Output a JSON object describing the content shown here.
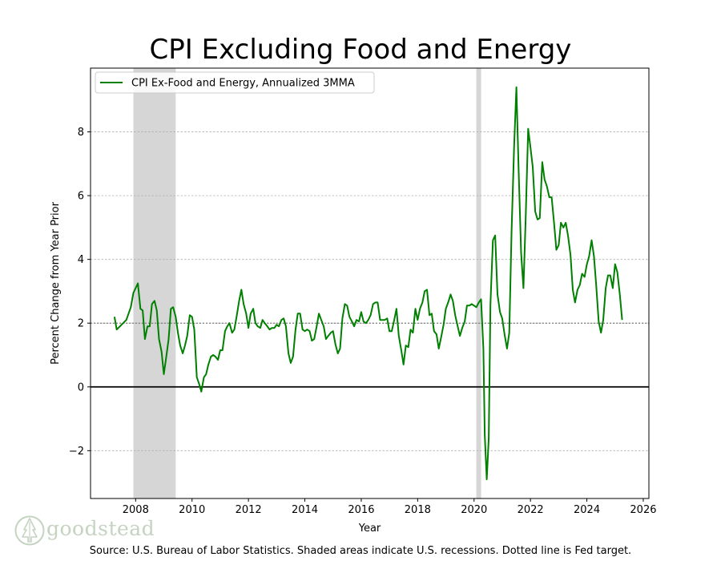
{
  "chart_data": {
    "type": "line",
    "title": "CPI Excluding Food and Energy",
    "xlabel": "Year",
    "ylabel": "Percent Change from Year Prior",
    "xlim": [
      2006.4,
      2026.2
    ],
    "ylim": [
      -3.5,
      10.0
    ],
    "x_ticks": [
      2008,
      2010,
      2012,
      2014,
      2016,
      2018,
      2020,
      2022,
      2024,
      2026
    ],
    "y_ticks": [
      -2,
      0,
      2,
      4,
      6,
      8
    ],
    "grid": "horizontal dashed",
    "legend_position": "top-left",
    "series": [
      {
        "name": "CPI Ex-Food and Energy, Annualized 3MMA",
        "color": "#008000",
        "points": [
          [
            2007.25,
            2.2
          ],
          [
            2007.33,
            1.8
          ],
          [
            2007.5,
            1.95
          ],
          [
            2007.67,
            2.1
          ],
          [
            2007.83,
            2.5
          ],
          [
            2007.92,
            2.95
          ],
          [
            2008.0,
            3.1
          ],
          [
            2008.08,
            3.25
          ],
          [
            2008.17,
            2.45
          ],
          [
            2008.25,
            2.4
          ],
          [
            2008.33,
            1.5
          ],
          [
            2008.42,
            1.9
          ],
          [
            2008.5,
            1.9
          ],
          [
            2008.58,
            2.6
          ],
          [
            2008.67,
            2.7
          ],
          [
            2008.75,
            2.4
          ],
          [
            2008.83,
            1.5
          ],
          [
            2008.92,
            1.1
          ],
          [
            2009.0,
            0.4
          ],
          [
            2009.08,
            0.9
          ],
          [
            2009.17,
            1.5
          ],
          [
            2009.25,
            2.45
          ],
          [
            2009.33,
            2.5
          ],
          [
            2009.42,
            2.2
          ],
          [
            2009.5,
            1.7
          ],
          [
            2009.58,
            1.3
          ],
          [
            2009.67,
            1.05
          ],
          [
            2009.75,
            1.3
          ],
          [
            2009.83,
            1.6
          ],
          [
            2009.92,
            2.25
          ],
          [
            2010.0,
            2.2
          ],
          [
            2010.08,
            1.8
          ],
          [
            2010.17,
            0.3
          ],
          [
            2010.25,
            0.1
          ],
          [
            2010.33,
            -0.15
          ],
          [
            2010.42,
            0.3
          ],
          [
            2010.5,
            0.4
          ],
          [
            2010.58,
            0.7
          ],
          [
            2010.67,
            0.95
          ],
          [
            2010.75,
            1.0
          ],
          [
            2010.83,
            0.95
          ],
          [
            2010.92,
            0.85
          ],
          [
            2011.0,
            1.15
          ],
          [
            2011.08,
            1.15
          ],
          [
            2011.17,
            1.75
          ],
          [
            2011.25,
            1.9
          ],
          [
            2011.33,
            2.0
          ],
          [
            2011.42,
            1.7
          ],
          [
            2011.5,
            1.8
          ],
          [
            2011.58,
            2.2
          ],
          [
            2011.67,
            2.7
          ],
          [
            2011.75,
            3.05
          ],
          [
            2011.83,
            2.6
          ],
          [
            2011.92,
            2.3
          ],
          [
            2012.0,
            1.85
          ],
          [
            2012.08,
            2.3
          ],
          [
            2012.17,
            2.45
          ],
          [
            2012.25,
            2.0
          ],
          [
            2012.33,
            1.9
          ],
          [
            2012.42,
            1.85
          ],
          [
            2012.5,
            2.1
          ],
          [
            2012.58,
            2.0
          ],
          [
            2012.67,
            1.9
          ],
          [
            2012.75,
            1.8
          ],
          [
            2012.83,
            1.85
          ],
          [
            2012.92,
            1.85
          ],
          [
            2013.0,
            1.95
          ],
          [
            2013.08,
            1.9
          ],
          [
            2013.17,
            2.1
          ],
          [
            2013.25,
            2.15
          ],
          [
            2013.33,
            1.9
          ],
          [
            2013.42,
            1.05
          ],
          [
            2013.5,
            0.75
          ],
          [
            2013.58,
            0.95
          ],
          [
            2013.67,
            1.8
          ],
          [
            2013.75,
            2.3
          ],
          [
            2013.83,
            2.3
          ],
          [
            2013.92,
            1.8
          ],
          [
            2014.0,
            1.75
          ],
          [
            2014.08,
            1.8
          ],
          [
            2014.17,
            1.75
          ],
          [
            2014.25,
            1.45
          ],
          [
            2014.33,
            1.5
          ],
          [
            2014.42,
            1.9
          ],
          [
            2014.5,
            2.3
          ],
          [
            2014.58,
            2.1
          ],
          [
            2014.67,
            1.9
          ],
          [
            2014.75,
            1.5
          ],
          [
            2014.83,
            1.6
          ],
          [
            2014.92,
            1.7
          ],
          [
            2015.0,
            1.75
          ],
          [
            2015.08,
            1.35
          ],
          [
            2015.17,
            1.05
          ],
          [
            2015.25,
            1.2
          ],
          [
            2015.33,
            2.15
          ],
          [
            2015.42,
            2.6
          ],
          [
            2015.5,
            2.55
          ],
          [
            2015.58,
            2.2
          ],
          [
            2015.67,
            2.05
          ],
          [
            2015.75,
            1.9
          ],
          [
            2015.83,
            2.1
          ],
          [
            2015.92,
            2.05
          ],
          [
            2016.0,
            2.35
          ],
          [
            2016.08,
            2.05
          ],
          [
            2016.17,
            2.0
          ],
          [
            2016.25,
            2.1
          ],
          [
            2016.33,
            2.25
          ],
          [
            2016.42,
            2.6
          ],
          [
            2016.5,
            2.65
          ],
          [
            2016.58,
            2.65
          ],
          [
            2016.67,
            2.1
          ],
          [
            2016.75,
            2.1
          ],
          [
            2016.83,
            2.1
          ],
          [
            2016.92,
            2.15
          ],
          [
            2017.0,
            1.75
          ],
          [
            2017.08,
            1.75
          ],
          [
            2017.17,
            2.1
          ],
          [
            2017.25,
            2.45
          ],
          [
            2017.33,
            1.6
          ],
          [
            2017.42,
            1.15
          ],
          [
            2017.5,
            0.7
          ],
          [
            2017.58,
            1.3
          ],
          [
            2017.67,
            1.25
          ],
          [
            2017.75,
            1.8
          ],
          [
            2017.83,
            1.7
          ],
          [
            2017.92,
            2.45
          ],
          [
            2018.0,
            2.1
          ],
          [
            2018.08,
            2.45
          ],
          [
            2018.17,
            2.65
          ],
          [
            2018.25,
            3.0
          ],
          [
            2018.33,
            3.05
          ],
          [
            2018.42,
            2.25
          ],
          [
            2018.5,
            2.3
          ],
          [
            2018.58,
            1.75
          ],
          [
            2018.67,
            1.65
          ],
          [
            2018.75,
            1.2
          ],
          [
            2018.83,
            1.55
          ],
          [
            2018.92,
            1.95
          ],
          [
            2019.0,
            2.45
          ],
          [
            2019.08,
            2.65
          ],
          [
            2019.17,
            2.9
          ],
          [
            2019.25,
            2.7
          ],
          [
            2019.33,
            2.25
          ],
          [
            2019.42,
            1.9
          ],
          [
            2019.5,
            1.6
          ],
          [
            2019.58,
            1.85
          ],
          [
            2019.67,
            2.05
          ],
          [
            2019.75,
            2.55
          ],
          [
            2019.83,
            2.55
          ],
          [
            2019.92,
            2.6
          ],
          [
            2020.0,
            2.55
          ],
          [
            2020.08,
            2.5
          ],
          [
            2020.17,
            2.65
          ],
          [
            2020.25,
            2.75
          ],
          [
            2020.33,
            1.2
          ],
          [
            2020.38,
            -1.5
          ],
          [
            2020.45,
            -2.9
          ],
          [
            2020.52,
            -1.6
          ],
          [
            2020.58,
            2.6
          ],
          [
            2020.67,
            4.6
          ],
          [
            2020.75,
            4.75
          ],
          [
            2020.83,
            2.9
          ],
          [
            2020.92,
            2.35
          ],
          [
            2021.0,
            2.15
          ],
          [
            2021.08,
            1.65
          ],
          [
            2021.17,
            1.2
          ],
          [
            2021.25,
            1.7
          ],
          [
            2021.33,
            4.9
          ],
          [
            2021.42,
            7.5
          ],
          [
            2021.5,
            9.4
          ],
          [
            2021.58,
            6.8
          ],
          [
            2021.67,
            4.2
          ],
          [
            2021.75,
            3.1
          ],
          [
            2021.83,
            5.3
          ],
          [
            2021.92,
            8.1
          ],
          [
            2022.0,
            7.5
          ],
          [
            2022.08,
            6.9
          ],
          [
            2022.17,
            5.5
          ],
          [
            2022.25,
            5.25
          ],
          [
            2022.33,
            5.3
          ],
          [
            2022.42,
            7.05
          ],
          [
            2022.5,
            6.5
          ],
          [
            2022.58,
            6.3
          ],
          [
            2022.67,
            5.95
          ],
          [
            2022.75,
            5.95
          ],
          [
            2022.83,
            5.2
          ],
          [
            2022.92,
            4.3
          ],
          [
            2023.0,
            4.45
          ],
          [
            2023.08,
            5.15
          ],
          [
            2023.17,
            5.0
          ],
          [
            2023.25,
            5.15
          ],
          [
            2023.33,
            4.75
          ],
          [
            2023.42,
            4.15
          ],
          [
            2023.5,
            3.05
          ],
          [
            2023.58,
            2.65
          ],
          [
            2023.67,
            3.05
          ],
          [
            2023.75,
            3.2
          ],
          [
            2023.83,
            3.55
          ],
          [
            2023.92,
            3.45
          ],
          [
            2024.0,
            3.85
          ],
          [
            2024.08,
            4.1
          ],
          [
            2024.17,
            4.6
          ],
          [
            2024.25,
            4.1
          ],
          [
            2024.33,
            3.2
          ],
          [
            2024.42,
            2.05
          ],
          [
            2024.5,
            1.7
          ],
          [
            2024.58,
            2.1
          ],
          [
            2024.67,
            3.1
          ],
          [
            2024.75,
            3.5
          ],
          [
            2024.83,
            3.5
          ],
          [
            2024.92,
            3.1
          ],
          [
            2025.0,
            3.85
          ],
          [
            2025.08,
            3.6
          ],
          [
            2025.17,
            2.9
          ],
          [
            2025.25,
            2.1
          ]
        ]
      }
    ],
    "recessions": [
      {
        "start": 2007.92,
        "end": 2009.42
      },
      {
        "start": 2020.08,
        "end": 2020.25
      }
    ],
    "reference_lines": [
      {
        "y": 0,
        "style": "solid",
        "color": "#000000"
      },
      {
        "y": 2,
        "style": "dotted",
        "color": "#808080",
        "label": "Fed target"
      }
    ]
  },
  "footer": {
    "source": "Source: U.S. Bureau of Labor Statistics. Shaded areas indicate U.S. recessions. Dotted line is Fed target."
  },
  "logo": {
    "text": "goodstead",
    "icon": "tree-icon",
    "color": "#c5d3c1"
  }
}
